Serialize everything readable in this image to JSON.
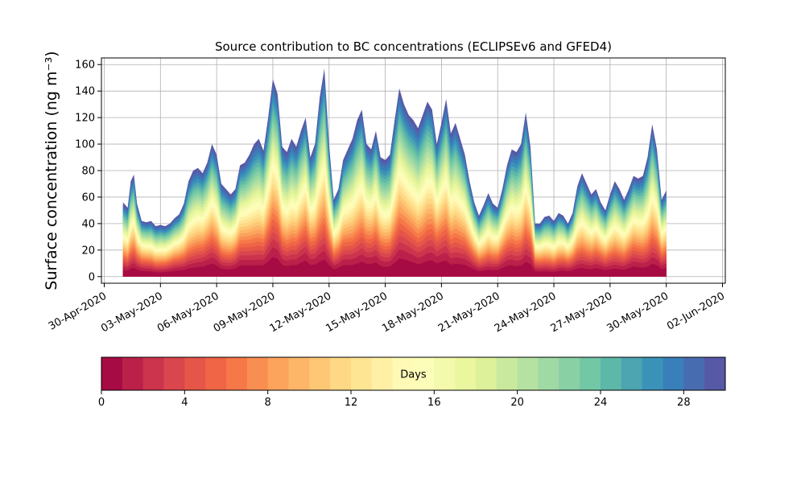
{
  "chart_data": {
    "type": "area",
    "title": "Source contribution to BC concentrations (ECLIPSEv6 and GFED4)",
    "ylabel": "Surface concentration (ng m⁻³)",
    "xlabel": "",
    "ylim": [
      -5,
      165
    ],
    "xlim": [
      "2020-04-30",
      "2020-06-02"
    ],
    "yticks": [
      "0",
      "20",
      "40",
      "60",
      "80",
      "100",
      "120",
      "140",
      "160"
    ],
    "xticks": [
      "30-Apr-2020",
      "03-May-2020",
      "06-May-2020",
      "09-May-2020",
      "12-May-2020",
      "15-May-2020",
      "18-May-2020",
      "21-May-2020",
      "24-May-2020",
      "27-May-2020",
      "30-May-2020",
      "02-Jun-2020"
    ],
    "grid": true,
    "colormap": "Spectral",
    "stack_layers": 30,
    "series_note_points": "x = date, y = total surface concentration (ng m⁻³)",
    "total": [
      [
        "2020-05-01 00:00",
        56
      ],
      [
        "2020-05-01 06:00",
        52
      ],
      [
        "2020-05-01 10:00",
        72
      ],
      [
        "2020-05-01 14:00",
        77
      ],
      [
        "2020-05-01 18:00",
        55
      ],
      [
        "2020-05-02 00:00",
        42
      ],
      [
        "2020-05-02 06:00",
        41
      ],
      [
        "2020-05-02 12:00",
        42
      ],
      [
        "2020-05-02 18:00",
        38
      ],
      [
        "2020-05-03 00:00",
        39
      ],
      [
        "2020-05-03 06:00",
        38
      ],
      [
        "2020-05-03 12:00",
        40
      ],
      [
        "2020-05-03 18:00",
        44
      ],
      [
        "2020-05-04 00:00",
        47
      ],
      [
        "2020-05-04 06:00",
        55
      ],
      [
        "2020-05-04 12:00",
        72
      ],
      [
        "2020-05-04 18:00",
        80
      ],
      [
        "2020-05-05 00:00",
        82
      ],
      [
        "2020-05-05 06:00",
        78
      ],
      [
        "2020-05-05 12:00",
        86
      ],
      [
        "2020-05-05 18:00",
        100
      ],
      [
        "2020-05-06 00:00",
        92
      ],
      [
        "2020-05-06 06:00",
        70
      ],
      [
        "2020-05-06 12:00",
        66
      ],
      [
        "2020-05-06 18:00",
        62
      ],
      [
        "2020-05-07 00:00",
        66
      ],
      [
        "2020-05-07 06:00",
        84
      ],
      [
        "2020-05-07 12:00",
        86
      ],
      [
        "2020-05-07 18:00",
        92
      ],
      [
        "2020-05-08 00:00",
        100
      ],
      [
        "2020-05-08 06:00",
        104
      ],
      [
        "2020-05-08 12:00",
        95
      ],
      [
        "2020-05-08 18:00",
        120
      ],
      [
        "2020-05-09 00:00",
        149
      ],
      [
        "2020-05-09 06:00",
        138
      ],
      [
        "2020-05-09 12:00",
        98
      ],
      [
        "2020-05-09 18:00",
        94
      ],
      [
        "2020-05-10 00:00",
        104
      ],
      [
        "2020-05-10 06:00",
        98
      ],
      [
        "2020-05-10 12:00",
        110
      ],
      [
        "2020-05-10 18:00",
        120
      ],
      [
        "2020-05-11 00:00",
        90
      ],
      [
        "2020-05-11 06:00",
        100
      ],
      [
        "2020-05-11 12:00",
        135
      ],
      [
        "2020-05-11 18:00",
        157
      ],
      [
        "2020-05-12 00:00",
        100
      ],
      [
        "2020-05-12 06:00",
        58
      ],
      [
        "2020-05-12 12:00",
        66
      ],
      [
        "2020-05-12 18:00",
        88
      ],
      [
        "2020-05-13 00:00",
        96
      ],
      [
        "2020-05-13 06:00",
        104
      ],
      [
        "2020-05-13 12:00",
        118
      ],
      [
        "2020-05-13 18:00",
        126
      ],
      [
        "2020-05-14 00:00",
        100
      ],
      [
        "2020-05-14 06:00",
        96
      ],
      [
        "2020-05-14 12:00",
        110
      ],
      [
        "2020-05-14 18:00",
        90
      ],
      [
        "2020-05-15 00:00",
        88
      ],
      [
        "2020-05-15 06:00",
        92
      ],
      [
        "2020-05-15 12:00",
        118
      ],
      [
        "2020-05-15 18:00",
        142
      ],
      [
        "2020-05-16 00:00",
        130
      ],
      [
        "2020-05-16 06:00",
        122
      ],
      [
        "2020-05-16 12:00",
        118
      ],
      [
        "2020-05-16 18:00",
        112
      ],
      [
        "2020-05-17 00:00",
        122
      ],
      [
        "2020-05-17 06:00",
        132
      ],
      [
        "2020-05-17 12:00",
        126
      ],
      [
        "2020-05-17 18:00",
        100
      ],
      [
        "2020-05-18 00:00",
        116
      ],
      [
        "2020-05-18 06:00",
        134
      ],
      [
        "2020-05-18 12:00",
        108
      ],
      [
        "2020-05-18 18:00",
        116
      ],
      [
        "2020-05-19 00:00",
        104
      ],
      [
        "2020-05-19 06:00",
        92
      ],
      [
        "2020-05-19 12:00",
        72
      ],
      [
        "2020-05-19 18:00",
        56
      ],
      [
        "2020-05-20 00:00",
        46
      ],
      [
        "2020-05-20 06:00",
        54
      ],
      [
        "2020-05-20 12:00",
        63
      ],
      [
        "2020-05-20 18:00",
        55
      ],
      [
        "2020-05-21 00:00",
        52
      ],
      [
        "2020-05-21 06:00",
        66
      ],
      [
        "2020-05-21 12:00",
        84
      ],
      [
        "2020-05-21 18:00",
        96
      ],
      [
        "2020-05-22 00:00",
        94
      ],
      [
        "2020-05-22 06:00",
        100
      ],
      [
        "2020-05-22 12:00",
        124
      ],
      [
        "2020-05-22 18:00",
        98
      ],
      [
        "2020-05-23 00:00",
        40
      ],
      [
        "2020-05-23 06:00",
        40
      ],
      [
        "2020-05-23 12:00",
        45
      ],
      [
        "2020-05-23 18:00",
        46
      ],
      [
        "2020-05-24 00:00",
        42
      ],
      [
        "2020-05-24 06:00",
        48
      ],
      [
        "2020-05-24 12:00",
        46
      ],
      [
        "2020-05-24 18:00",
        40
      ],
      [
        "2020-05-25 00:00",
        48
      ],
      [
        "2020-05-25 06:00",
        68
      ],
      [
        "2020-05-25 12:00",
        78
      ],
      [
        "2020-05-25 18:00",
        70
      ],
      [
        "2020-05-26 00:00",
        62
      ],
      [
        "2020-05-26 06:00",
        66
      ],
      [
        "2020-05-26 12:00",
        56
      ],
      [
        "2020-05-26 18:00",
        50
      ],
      [
        "2020-05-27 00:00",
        62
      ],
      [
        "2020-05-27 06:00",
        72
      ],
      [
        "2020-05-27 12:00",
        66
      ],
      [
        "2020-05-27 18:00",
        58
      ],
      [
        "2020-05-28 00:00",
        66
      ],
      [
        "2020-05-28 06:00",
        76
      ],
      [
        "2020-05-28 12:00",
        74
      ],
      [
        "2020-05-28 18:00",
        76
      ],
      [
        "2020-05-29 00:00",
        90
      ],
      [
        "2020-05-29 06:00",
        115
      ],
      [
        "2020-05-29 12:00",
        96
      ],
      [
        "2020-05-29 18:00",
        58
      ],
      [
        "2020-05-30 00:00",
        65
      ]
    ],
    "colorbar": {
      "label": "Days",
      "min": 0,
      "max": 30,
      "levels": 30,
      "ticks": [
        "0",
        "4",
        "8",
        "12",
        "16",
        "20",
        "24",
        "28"
      ],
      "orientation": "horizontal",
      "placement": "bottom"
    }
  }
}
